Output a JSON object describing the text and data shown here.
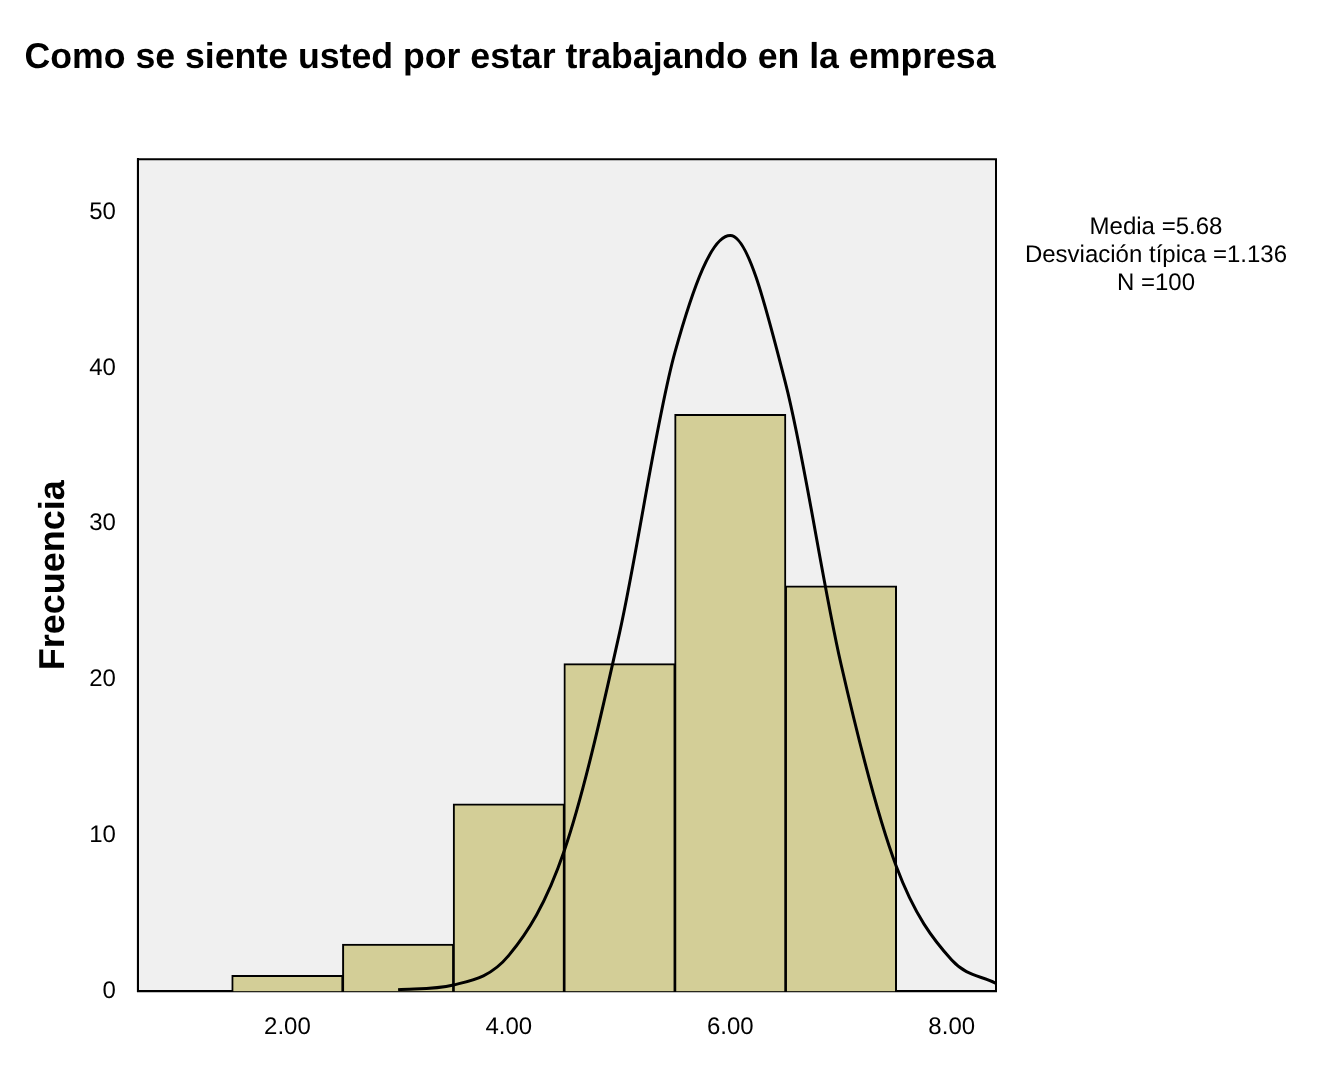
{
  "chart_data": {
    "type": "histogram",
    "title": "Como se siente usted por estar trabajando en la empresa",
    "ylabel": "Frecuencia",
    "bins": [
      1.5,
      2.5,
      3.5,
      4.5,
      5.5,
      6.5,
      7.5
    ],
    "values": [
      1,
      3,
      12,
      21,
      37,
      26
    ],
    "color": "#d3ce97",
    "series": [
      {
        "type": "line",
        "color": "#000000",
        "x": [
          3.0,
          3.5,
          4.0,
          4.5,
          5.0,
          5.5,
          6.0,
          6.5,
          7.0,
          7.5,
          8.0,
          8.4
        ],
        "values": [
          0.1,
          0.4,
          2.3,
          9,
          23,
          41,
          48.5,
          39,
          21,
          8,
          2,
          0.5
        ]
      }
    ],
    "xlim": [
      0.65,
      8.4
    ],
    "xticks": [
      {
        "value": 2,
        "label": "2.00"
      },
      {
        "value": 4,
        "label": "4.00"
      },
      {
        "value": 6,
        "label": "6.00"
      },
      {
        "value": 8,
        "label": "8.00"
      }
    ],
    "ylim": [
      0,
      53.4
    ],
    "yticks": [
      0,
      10,
      20,
      30,
      40,
      50
    ],
    "grid": false,
    "legend": false,
    "annotations": [
      "Media =5.68",
      "Desviación típica =1.136",
      "N =100"
    ]
  }
}
